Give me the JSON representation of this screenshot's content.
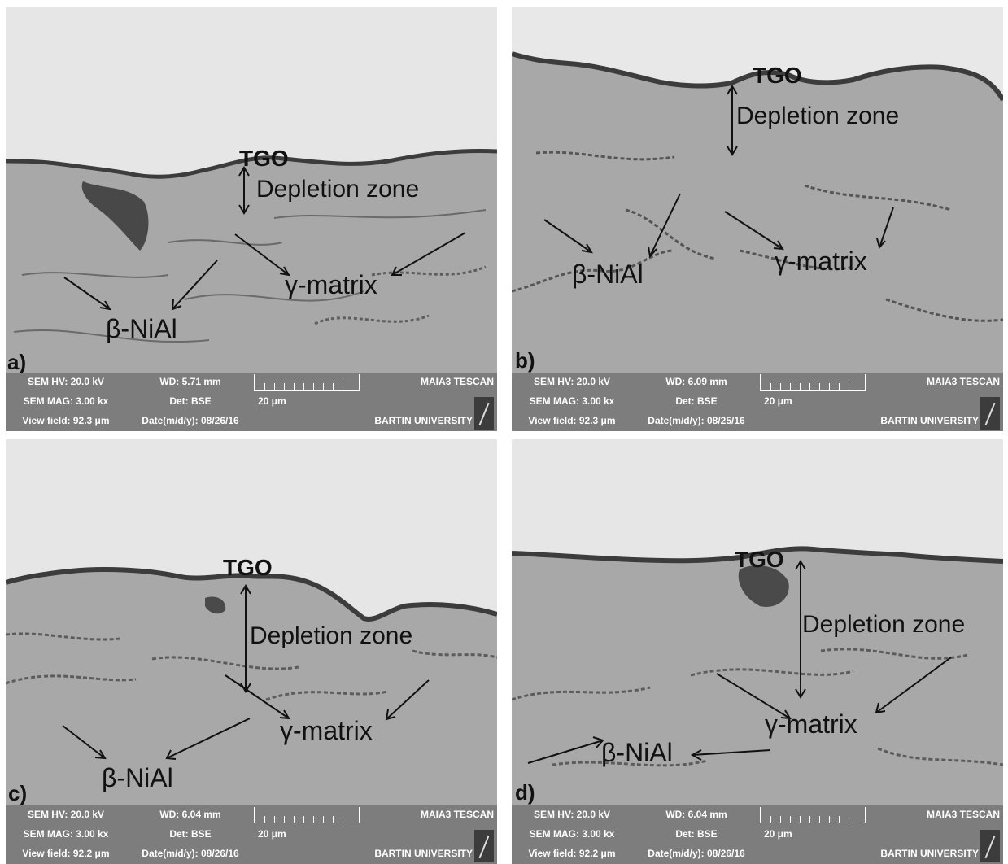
{
  "panels": [
    {
      "letter": "a)",
      "tgo": "TGO",
      "zone": "Depletion zone",
      "gamma": "γ-matrix",
      "beta": "β-NiAl",
      "info": {
        "hv": "SEM HV: 20.0 kV",
        "wd": "WD: 5.71 mm",
        "mag": "SEM MAG: 3.00 kx",
        "det": "Det: BSE",
        "vf": "View field: 92.3 μm",
        "date": "Date(m/d/y): 08/26/16",
        "scale": "20 μm",
        "brand": "MAIA3 TESCAN",
        "university": "BARTIN UNIVERSITY"
      }
    },
    {
      "letter": "b)",
      "tgo": "TGO",
      "zone": "Depletion zone",
      "gamma": "γ-matrix",
      "beta": "β-NiAl",
      "info": {
        "hv": "SEM HV: 20.0 kV",
        "wd": "WD: 6.09 mm",
        "mag": "SEM MAG: 3.00 kx",
        "det": "Det: BSE",
        "vf": "View field: 92.3 μm",
        "date": "Date(m/d/y): 08/25/16",
        "scale": "20 μm",
        "brand": "MAIA3 TESCAN",
        "university": "BARTIN UNIVERSITY"
      }
    },
    {
      "letter": "c)",
      "tgo": "TGO",
      "zone": "Depletion zone",
      "gamma": "γ-matrix",
      "beta": "β-NiAl",
      "info": {
        "hv": "SEM HV: 20.0 kV",
        "wd": "WD: 6.04 mm",
        "mag": "SEM MAG: 3.00 kx",
        "det": "Det: BSE",
        "vf": "View field: 92.2 μm",
        "date": "Date(m/d/y): 08/26/16",
        "scale": "20 μm",
        "brand": "MAIA3 TESCAN",
        "university": "BARTIN UNIVERSITY"
      }
    },
    {
      "letter": "d)",
      "tgo": "TGO",
      "zone": "Depletion zone",
      "gamma": "γ-matrix",
      "beta": "β-NiAl",
      "info": {
        "hv": "SEM HV: 20.0 kV",
        "wd": "WD: 6.04 mm",
        "mag": "SEM MAG: 3.00 kx",
        "det": "Det: BSE",
        "vf": "View field: 92.2 μm",
        "date": "Date(m/d/y): 08/26/16",
        "scale": "20 μm",
        "brand": "MAIA3 TESCAN",
        "university": "BARTIN UNIVERSITY"
      }
    }
  ]
}
